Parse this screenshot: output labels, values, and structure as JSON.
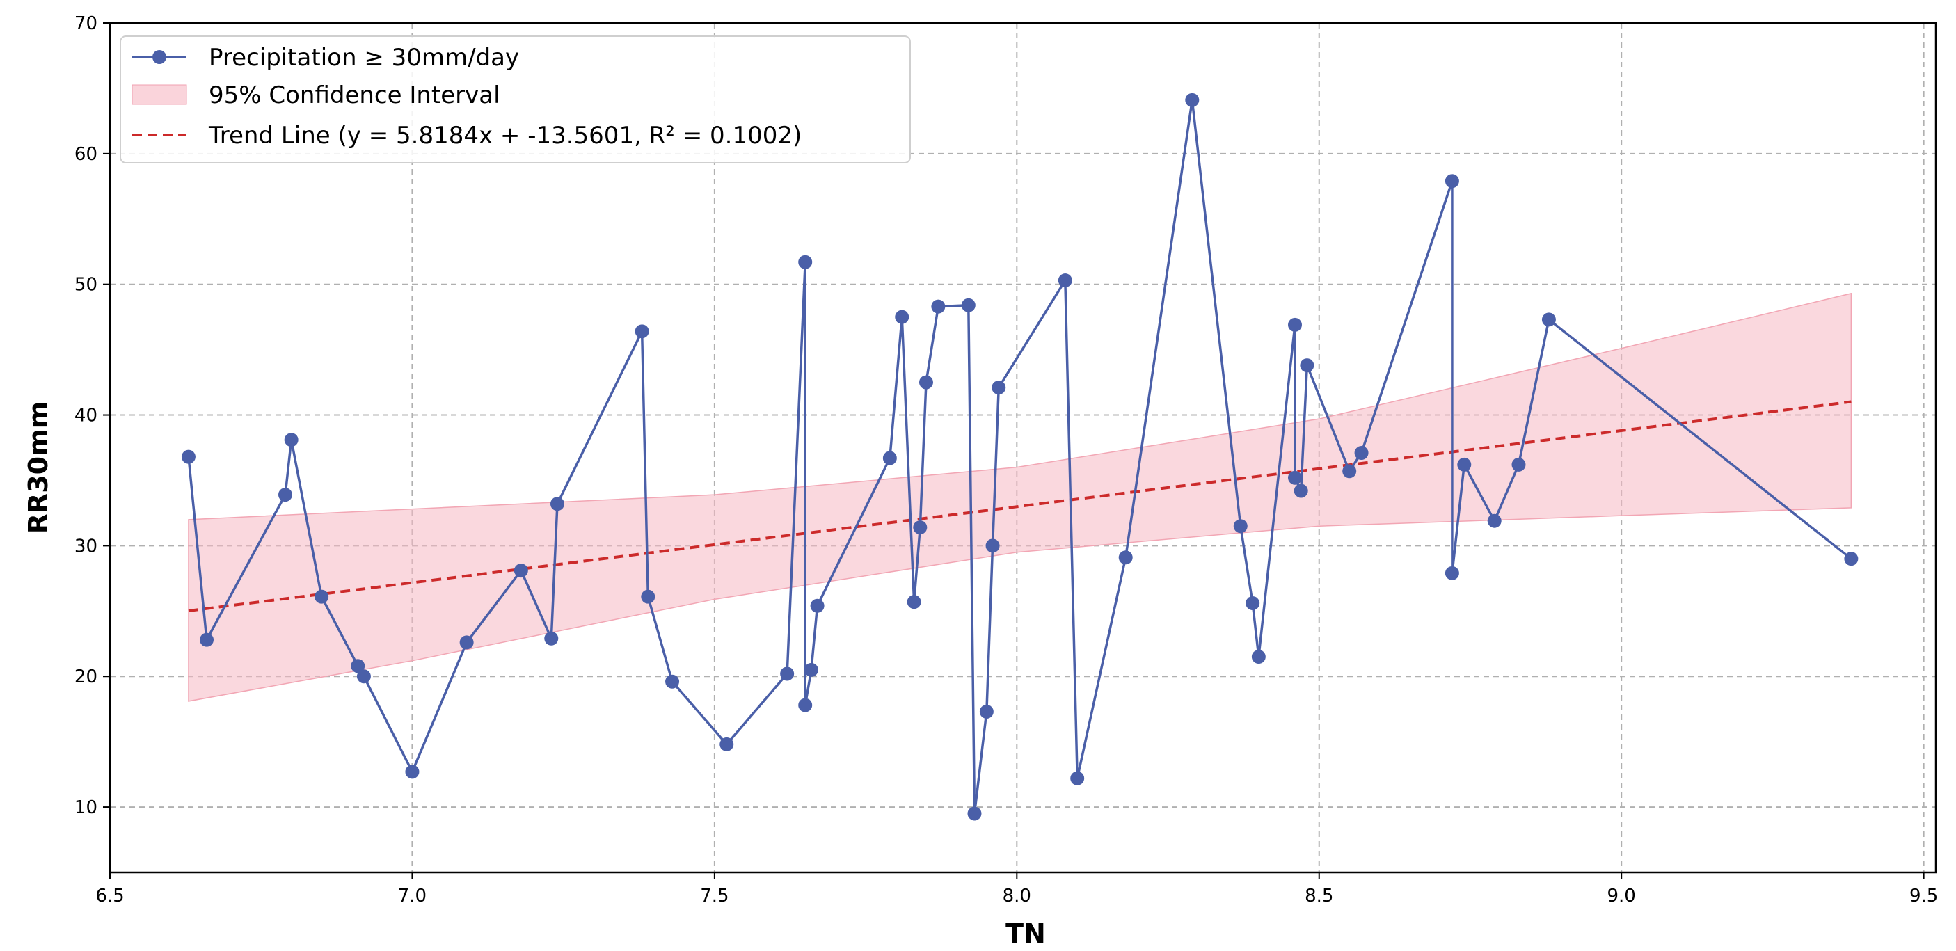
{
  "chart_data": {
    "type": "line",
    "title": "",
    "xlabel": "TN",
    "ylabel": "RR30mm",
    "xlim": [
      6.5,
      9.52
    ],
    "ylim": [
      5,
      70
    ],
    "xticks": [
      "6.5",
      "7.0",
      "7.5",
      "8.0",
      "8.5",
      "9.0",
      "9.5"
    ],
    "yticks": [
      "10",
      "20",
      "30",
      "40",
      "50",
      "60",
      "70"
    ],
    "grid": true,
    "legend_position": "top-left",
    "colors": {
      "series": "#4a5fa8",
      "ci_fill": "#f6b8c3",
      "trend": "#cc2a2a"
    },
    "series": [
      {
        "name": "Precipitation ≥ 30mm/day",
        "points": [
          [
            6.63,
            36.8
          ],
          [
            6.66,
            22.8
          ],
          [
            6.79,
            33.9
          ],
          [
            6.8,
            38.1
          ],
          [
            6.85,
            26.1
          ],
          [
            6.91,
            20.8
          ],
          [
            6.92,
            20.0
          ],
          [
            7.0,
            12.7
          ],
          [
            7.09,
            22.6
          ],
          [
            7.18,
            28.1
          ],
          [
            7.23,
            22.9
          ],
          [
            7.24,
            33.2
          ],
          [
            7.38,
            46.4
          ],
          [
            7.39,
            26.1
          ],
          [
            7.43,
            19.6
          ],
          [
            7.52,
            14.8
          ],
          [
            7.62,
            20.2
          ],
          [
            7.65,
            51.7
          ],
          [
            7.65,
            17.8
          ],
          [
            7.66,
            20.5
          ],
          [
            7.67,
            25.4
          ],
          [
            7.79,
            36.7
          ],
          [
            7.81,
            47.5
          ],
          [
            7.83,
            25.7
          ],
          [
            7.84,
            31.4
          ],
          [
            7.85,
            42.5
          ],
          [
            7.87,
            48.3
          ],
          [
            7.92,
            48.4
          ],
          [
            7.93,
            9.5
          ],
          [
            7.95,
            17.3
          ],
          [
            7.96,
            30.0
          ],
          [
            7.97,
            42.1
          ],
          [
            8.08,
            50.3
          ],
          [
            8.1,
            12.2
          ],
          [
            8.18,
            29.1
          ],
          [
            8.29,
            64.1
          ],
          [
            8.37,
            31.5
          ],
          [
            8.39,
            25.6
          ],
          [
            8.4,
            21.5
          ],
          [
            8.46,
            46.9
          ],
          [
            8.46,
            35.2
          ],
          [
            8.47,
            34.2
          ],
          [
            8.48,
            43.8
          ],
          [
            8.55,
            35.7
          ],
          [
            8.57,
            37.1
          ],
          [
            8.72,
            57.9
          ],
          [
            8.72,
            27.9
          ],
          [
            8.74,
            36.2
          ],
          [
            8.79,
            31.9
          ],
          [
            8.83,
            36.2
          ],
          [
            8.88,
            47.3
          ],
          [
            9.38,
            29.0
          ]
        ]
      },
      {
        "name": "95% Confidence Interval",
        "upper": [
          [
            6.63,
            32.0
          ],
          [
            7.5,
            33.9
          ],
          [
            8.0,
            36.0
          ],
          [
            8.5,
            39.7
          ],
          [
            9.0,
            45.1
          ],
          [
            9.38,
            49.3
          ]
        ],
        "lower": [
          [
            6.63,
            18.1
          ],
          [
            7.0,
            21.2
          ],
          [
            7.5,
            25.9
          ],
          [
            8.0,
            29.5
          ],
          [
            8.5,
            31.5
          ],
          [
            9.0,
            32.3
          ],
          [
            9.38,
            32.9
          ]
        ]
      },
      {
        "name": "Trend Line (y = 5.8184x + -13.5601, R² = 0.1002)",
        "slope": 5.8184,
        "intercept": -13.5601,
        "x_range": [
          6.63,
          9.38
        ]
      }
    ]
  }
}
